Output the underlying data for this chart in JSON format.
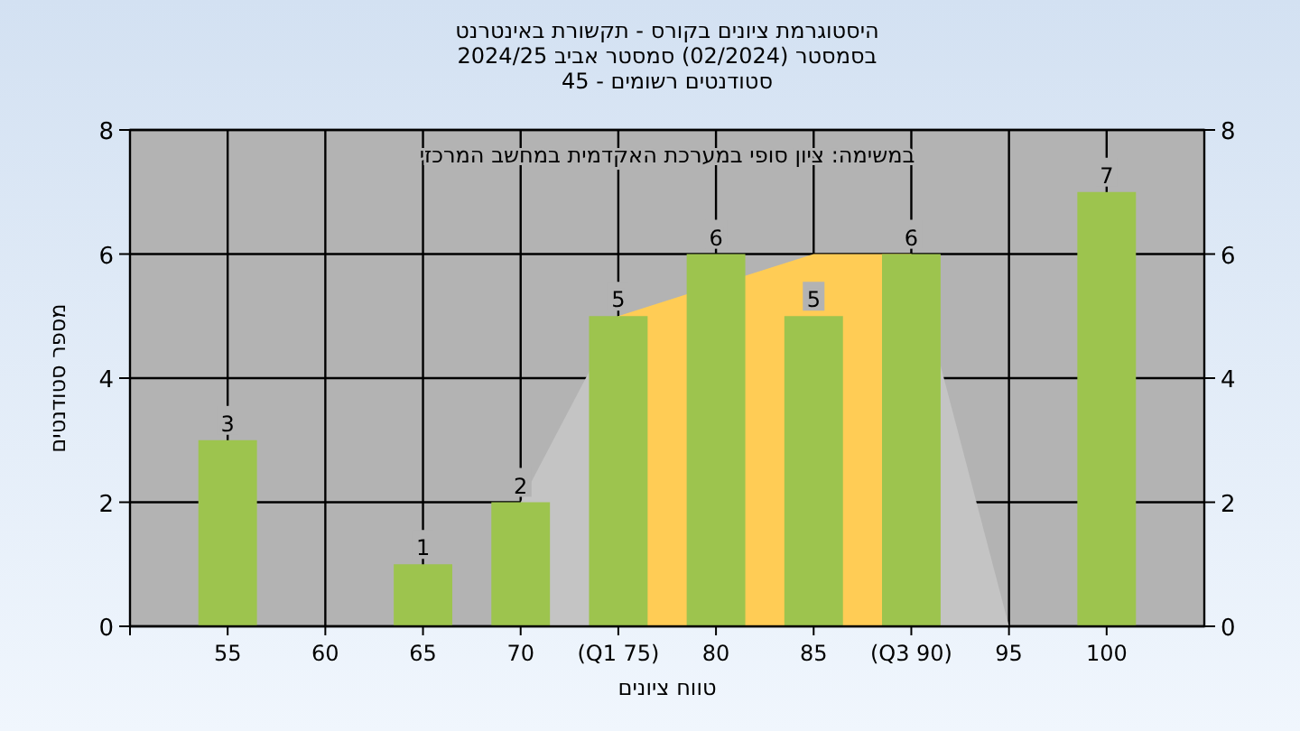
{
  "chart_data": {
    "type": "bar",
    "title": "היסטוגרמת ציונים בקורס - תקשורת באינטרנט",
    "subtitle": "בסמסטר  (02/2024)  סמסטר אביב 2024/25",
    "xlabel": "טווח ציונים",
    "ylabel": "מספר סטודנטים",
    "annotations": [
      "סטודנטים רשומים - 45",
      "במשימה: ציון סופי במערכת האקדמית במחשב המרכזי"
    ],
    "categories": [
      "55",
      "60",
      "65",
      "70",
      "(Q1 75)",
      "80",
      "85",
      "(Q3 90)",
      "95",
      "100"
    ],
    "series": [
      {
        "type": "area",
        "color": "#c4c4c4",
        "values": [
          null,
          null,
          null,
          2,
          5,
          null,
          null,
          6,
          0,
          null
        ]
      },
      {
        "type": "area",
        "color": "#ffcc55",
        "values": [
          null,
          null,
          null,
          null,
          5,
          null,
          6,
          6,
          null,
          null
        ]
      },
      {
        "color": "#9dc44e",
        "values": [
          3,
          0,
          1,
          2,
          5,
          6,
          5,
          6,
          0,
          7
        ],
        "value_labels": [
          "3",
          null,
          "1",
          "2",
          "5",
          "6",
          "5",
          "6",
          null,
          "7"
        ]
      }
    ],
    "ylim": [
      0,
      8
    ],
    "yticks": [
      0,
      2,
      4,
      6,
      8
    ],
    "y2lim": [
      0,
      8
    ],
    "y2ticks": [
      0,
      2,
      4,
      6,
      8
    ],
    "grid": true
  }
}
